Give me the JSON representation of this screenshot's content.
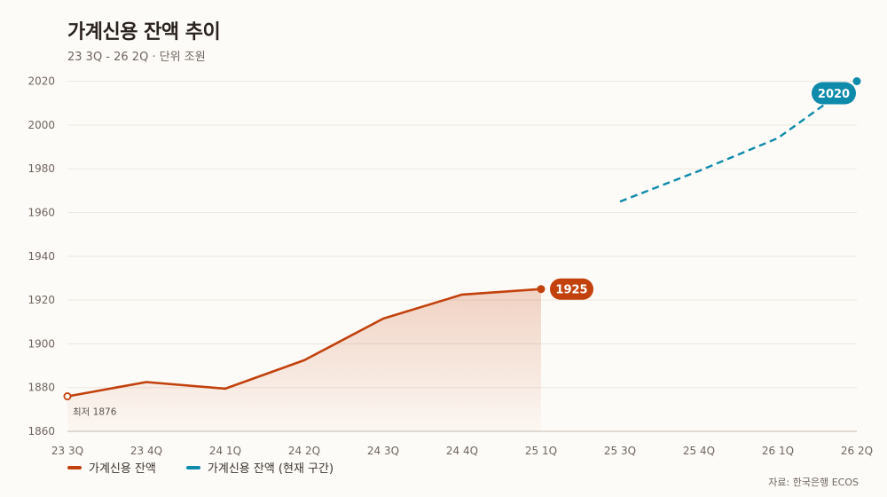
{
  "chart_data": {
    "type": "line",
    "title": "가계신용 잔액 추이",
    "subtitle": "23 3Q - 26 2Q · 단위 조원",
    "categories": [
      "23 3Q",
      "23 4Q",
      "24 1Q",
      "24 2Q",
      "24 3Q",
      "24 4Q",
      "25 1Q",
      "25 3Q",
      "25 4Q",
      "26 1Q",
      "26 2Q"
    ],
    "ylim": [
      1860,
      2020
    ],
    "yticks": [
      1860,
      1880,
      1900,
      1920,
      1940,
      1960,
      1980,
      2000,
      2020
    ],
    "grid": true,
    "legend_position": "bottom-left",
    "series": [
      {
        "name": "가계신용 잔액",
        "color": "#c2410c",
        "style": "solid-area",
        "points": [
          {
            "x": "23 3Q",
            "y": 1876
          },
          {
            "x": "23 4Q",
            "y": 1882.5
          },
          {
            "x": "24 1Q",
            "y": 1879.5
          },
          {
            "x": "24 2Q",
            "y": 1892.5
          },
          {
            "x": "24 3Q",
            "y": 1911.5
          },
          {
            "x": "24 4Q",
            "y": 1922.5
          },
          {
            "x": "25 1Q",
            "y": 1925
          }
        ]
      },
      {
        "name": "가계신용 잔액 (현재 구간)",
        "color": "#0e8aab",
        "style": "dashed",
        "points": [
          {
            "x": "25 3Q",
            "y": 1965
          },
          {
            "x": "25 4Q",
            "y": 1979
          },
          {
            "x": "26 1Q",
            "y": 1994
          },
          {
            "x": "26 2Q",
            "y": 2020
          }
        ]
      }
    ],
    "annotations": {
      "min_label": "최저 1876",
      "last_value_1": "1925",
      "last_value_2": "2020"
    }
  },
  "source": "자료: 한국은행 ECOS"
}
